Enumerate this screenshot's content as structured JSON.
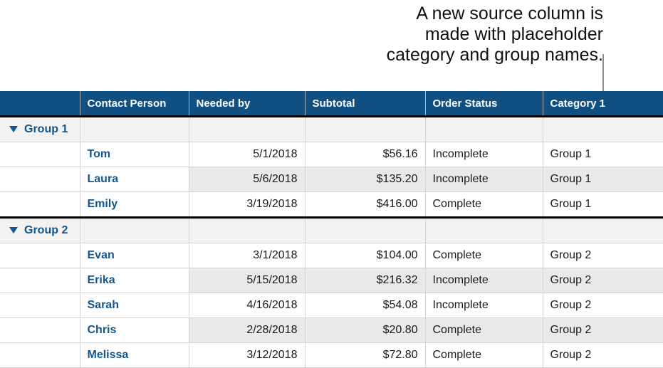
{
  "callout": {
    "text": "A new source column is\nmade with placeholder\ncategory and group names."
  },
  "colors": {
    "header_bg": "#0f4f81",
    "header_text": "#ffffff",
    "accent_blue": "#11568f",
    "group_row_bg": "#f3f2f1",
    "alt_row_bg": "#e9e9e9",
    "grid_line": "#d4d4d4",
    "separator": "#000000",
    "callout_line": "#8e8e8e"
  },
  "table": {
    "columns": [
      {
        "label": ""
      },
      {
        "label": "Contact Person"
      },
      {
        "label": "Needed by"
      },
      {
        "label": "Subtotal"
      },
      {
        "label": "Order Status"
      },
      {
        "label": "Category 1"
      }
    ],
    "rows": [
      {
        "type": "group",
        "label": "Group 1"
      },
      {
        "type": "data",
        "name": "Tom",
        "needed_by": "5/1/2018",
        "subtotal": "$56.16",
        "status": "Incomplete",
        "category": "Group 1"
      },
      {
        "type": "data",
        "name": "Laura",
        "needed_by": "5/6/2018",
        "subtotal": "$135.20",
        "status": "Incomplete",
        "category": "Group 1"
      },
      {
        "type": "data",
        "name": "Emily",
        "needed_by": "3/19/2018",
        "subtotal": "$416.00",
        "status": "Complete",
        "category": "Group 1"
      },
      {
        "type": "group",
        "label": "Group 2"
      },
      {
        "type": "data",
        "name": "Evan",
        "needed_by": "3/1/2018",
        "subtotal": "$104.00",
        "status": "Complete",
        "category": "Group 2"
      },
      {
        "type": "data",
        "name": "Erika",
        "needed_by": "5/15/2018",
        "subtotal": "$216.32",
        "status": "Incomplete",
        "category": "Group 2"
      },
      {
        "type": "data",
        "name": "Sarah",
        "needed_by": "4/16/2018",
        "subtotal": "$54.08",
        "status": "Incomplete",
        "category": "Group 2"
      },
      {
        "type": "data",
        "name": "Chris",
        "needed_by": "2/28/2018",
        "subtotal": "$20.80",
        "status": "Complete",
        "category": "Group 2"
      },
      {
        "type": "data",
        "name": "Melissa",
        "needed_by": "3/12/2018",
        "subtotal": "$72.80",
        "status": "Complete",
        "category": "Group 2"
      }
    ]
  }
}
